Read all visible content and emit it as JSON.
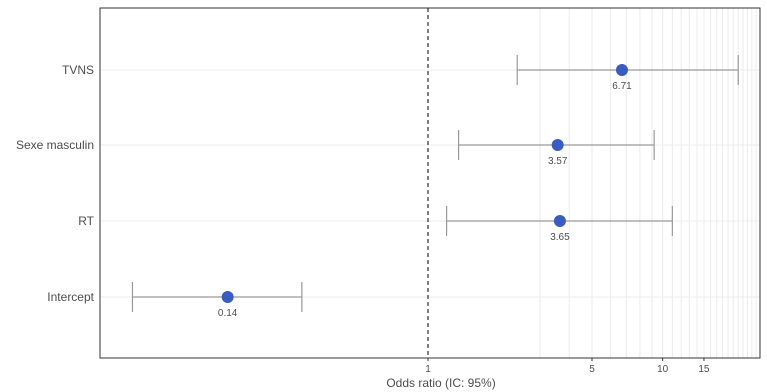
{
  "chart_data": {
    "type": "forest",
    "xlabel": "Odds ratio (IC: 95%)",
    "ylabel": "",
    "x_scale": "log",
    "xlim": [
      0.04,
      26
    ],
    "x_ticks": [
      1,
      5,
      10,
      15
    ],
    "x_tick_labels": [
      "1",
      "5",
      "10",
      "15"
    ],
    "minor_gridlines": [
      3,
      4,
      6,
      7,
      8,
      9,
      11,
      12,
      13,
      14,
      16,
      17,
      18,
      19,
      20,
      21,
      22,
      23,
      24,
      25
    ],
    "reference_line": 1,
    "grid": true,
    "categories": [
      "TVNS",
      "Sexe masculin",
      "RT",
      "Intercept"
    ],
    "estimates": [
      6.71,
      3.57,
      3.65,
      0.14
    ],
    "estimate_labels": [
      "6.71",
      "3.57",
      "3.65",
      "0.14"
    ],
    "ci_lower": [
      2.4,
      1.35,
      1.2,
      0.055
    ],
    "ci_upper": [
      21,
      9.2,
      11,
      0.29
    ],
    "colors": {
      "point": "#3a5bbf",
      "errorbar": "#999999",
      "grid": "#ebebeb",
      "reference": "#000000",
      "frame": "#333333"
    }
  }
}
